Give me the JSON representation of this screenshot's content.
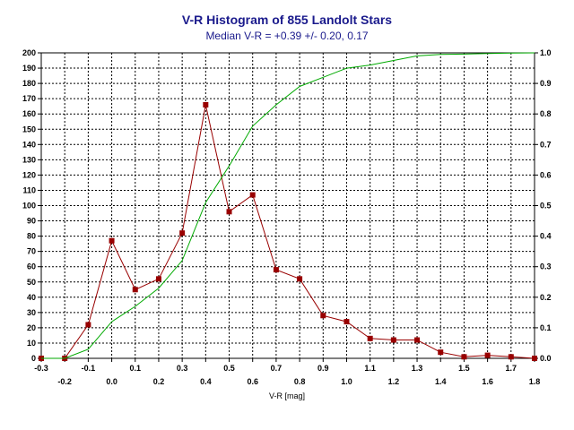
{
  "chart_data": {
    "type": "line",
    "title": "V-R Histogram of 855 Landolt Stars",
    "subtitle": "Median V-R = +0.39 +/- 0.20, 0.17",
    "xlabel": "V-R [mag]",
    "xlim": [
      -0.3,
      1.8
    ],
    "ylim_left": [
      0,
      200
    ],
    "ylim_right": [
      0.0,
      1.0
    ],
    "grid": true,
    "x_ticks": [
      "-0.3",
      "-0.2",
      "-0.1",
      "0.0",
      "0.1",
      "0.2",
      "0.3",
      "0.4",
      "0.5",
      "0.6",
      "0.7",
      "0.8",
      "0.9",
      "1.0",
      "1.1",
      "1.2",
      "1.3",
      "1.4",
      "1.5",
      "1.6",
      "1.7",
      "1.8"
    ],
    "y_left_ticks": [
      "0",
      "10",
      "20",
      "30",
      "40",
      "50",
      "60",
      "70",
      "80",
      "90",
      "100",
      "110",
      "120",
      "130",
      "140",
      "150",
      "160",
      "170",
      "180",
      "190",
      "200"
    ],
    "y_right_ticks": [
      "0.0",
      "0.1",
      "0.2",
      "0.3",
      "0.4",
      "0.5",
      "0.6",
      "0.7",
      "0.8",
      "0.9",
      "1.0"
    ],
    "x": [
      -0.3,
      -0.2,
      -0.1,
      0.0,
      0.1,
      0.2,
      0.3,
      0.4,
      0.5,
      0.6,
      0.7,
      0.8,
      0.9,
      1.0,
      1.1,
      1.2,
      1.3,
      1.4,
      1.5,
      1.6,
      1.7,
      1.8
    ],
    "series": [
      {
        "axis": "left",
        "color": "#990000",
        "marker": "square",
        "values": [
          0,
          0,
          22,
          77,
          45,
          52,
          82,
          166,
          96,
          107,
          58,
          52,
          28,
          24,
          13,
          12,
          12,
          4,
          1,
          2,
          1,
          0
        ]
      },
      {
        "axis": "right",
        "color": "#00aa00",
        "marker": "none",
        "values": [
          0.0,
          0.0,
          0.03,
          0.12,
          0.17,
          0.23,
          0.32,
          0.51,
          0.63,
          0.76,
          0.83,
          0.89,
          0.92,
          0.95,
          0.96,
          0.975,
          0.99,
          0.995,
          0.996,
          0.998,
          0.999,
          1.0
        ]
      }
    ]
  }
}
